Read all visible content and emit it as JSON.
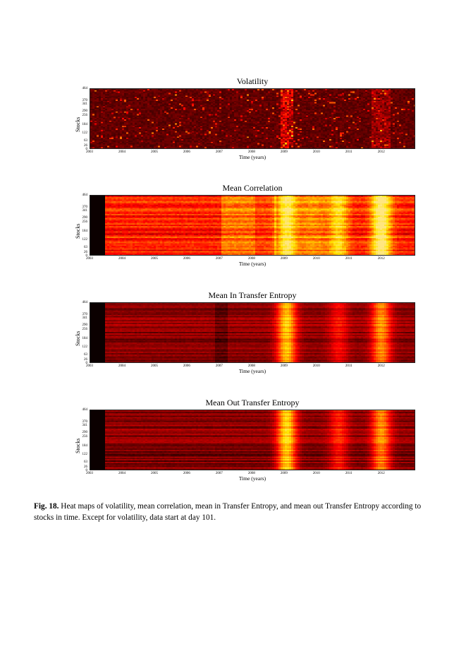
{
  "panels": [
    {
      "title": "Volatility",
      "xlabel": "Time (years)",
      "ylabel": "Stocks",
      "yticks": [
        "464",
        "370",
        "341",
        "290",
        "256",
        "184",
        "122",
        "63",
        "26",
        "0"
      ],
      "xticks": [
        "2003",
        "2004",
        "2005",
        "2006",
        "2007",
        "2008",
        "2009",
        "2010",
        "2011",
        "2012"
      ],
      "kind": "volatility"
    },
    {
      "title": "Mean Correlation",
      "xlabel": "Time (years)",
      "ylabel": "Stocks",
      "yticks": [
        "464",
        "370",
        "341",
        "290",
        "256",
        "184",
        "122",
        "63",
        "26",
        "0"
      ],
      "xticks": [
        "2003",
        "2004",
        "2005",
        "2006",
        "2007",
        "2008",
        "2009",
        "2010",
        "2011",
        "2012"
      ],
      "kind": "correlation"
    },
    {
      "title": "Mean In Transfer Entropy",
      "xlabel": "Time (years)",
      "ylabel": "Stocks",
      "yticks": [
        "464",
        "370",
        "341",
        "290",
        "256",
        "184",
        "122",
        "63",
        "26",
        "0"
      ],
      "xticks": [
        "2003",
        "2004",
        "2005",
        "2006",
        "2007",
        "2008",
        "2009",
        "2010",
        "2011",
        "2012"
      ],
      "kind": "in_te"
    },
    {
      "title": "Mean Out Transfer Entropy",
      "xlabel": "Time (years)",
      "ylabel": "Stocks",
      "yticks": [
        "464",
        "370",
        "341",
        "290",
        "256",
        "184",
        "122",
        "63",
        "26",
        "0"
      ],
      "xticks": [
        "2003",
        "2004",
        "2005",
        "2006",
        "2007",
        "2008",
        "2009",
        "2010",
        "2011",
        "2012"
      ],
      "kind": "out_te"
    }
  ],
  "caption": {
    "label": "Fig. 18.",
    "text": "Heat maps of volatility, mean correlation, mean in Transfer Entropy, and mean out Transfer Entropy according to stocks in time. Except for volatility, data start at day 101."
  },
  "colors": {
    "colormap": "hot",
    "low": "#000000",
    "mid": "#cc1100",
    "high": "#ffff66"
  }
}
